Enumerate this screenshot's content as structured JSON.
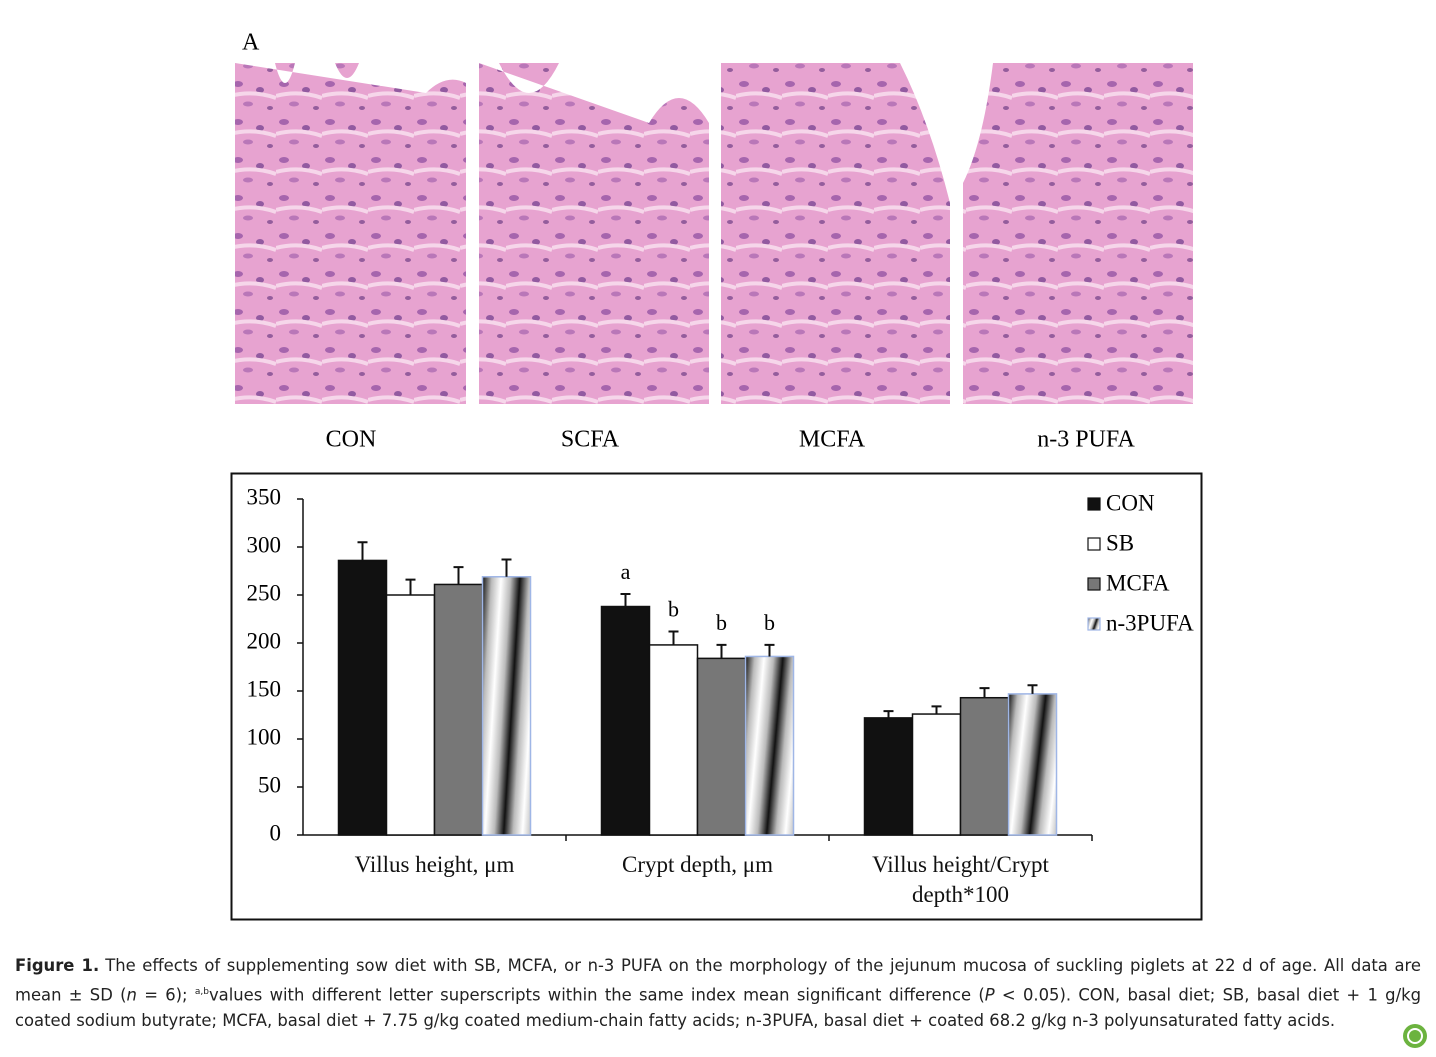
{
  "panel_label": "A",
  "image_labels": [
    "CON",
    "SCFA",
    "MCFA",
    "n-3 PUFA"
  ],
  "chart_data": {
    "type": "bar",
    "categories": [
      "Villus height, μm",
      "Crypt depth, μm",
      "Villus height/Crypt depth*100"
    ],
    "series": [
      {
        "name": "CON",
        "color": "#111111",
        "values": [
          286,
          238,
          122
        ],
        "errors": [
          19,
          13,
          7
        ],
        "letters": [
          null,
          "a",
          null
        ]
      },
      {
        "name": "SB",
        "color": "#ffffff",
        "values": [
          250,
          198,
          126
        ],
        "errors": [
          16,
          14,
          8
        ],
        "letters": [
          null,
          "b",
          null
        ]
      },
      {
        "name": "MCFA",
        "color": "#777777",
        "values": [
          261,
          184,
          143
        ],
        "errors": [
          18,
          14,
          10
        ],
        "letters": [
          null,
          "b",
          null
        ]
      },
      {
        "name": "n-3PUFA",
        "color": "#9fb6e6",
        "hatch": true,
        "values": [
          269,
          186,
          147
        ],
        "errors": [
          18,
          12,
          9
        ],
        "letters": [
          null,
          "b",
          null
        ]
      }
    ],
    "ylim": [
      0,
      350
    ],
    "yticks": [
      0,
      50,
      100,
      150,
      200,
      250,
      300,
      350
    ],
    "legend": "top-right",
    "grid": false
  },
  "caption": {
    "label": "Figure 1.",
    "parts": [
      "The effects of supplementing sow diet with SB, MCFA, or n-3 PUFA on the morphology of the jejunum mucosa of suckling piglets at 22 d of age. All data are mean ± SD (",
      "n",
      " = 6); ",
      "a,b",
      "values with different letter superscripts within the same index mean significant difference (",
      "P",
      " < 0.05). CON, basal diet; SB, basal diet + 1 g/kg coated sodium butyrate; MCFA, basal diet + 7.75 g/kg coated medium-chain fatty acids; n-3PUFA, basal diet + coated 68.2 g/kg n-3 polyunsaturated fatty acids."
    ]
  }
}
